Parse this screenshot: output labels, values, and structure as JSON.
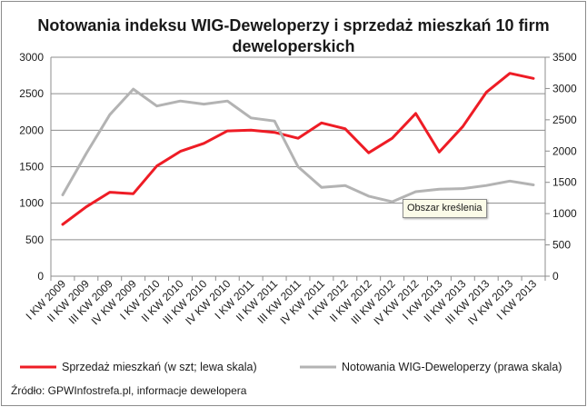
{
  "chart_data": {
    "type": "line",
    "title_line1": "Notowania indeksu WIG-Deweloperzy i sprzedaż mieszkań 10 firm",
    "title_line2": "deweloperskich",
    "categories": [
      "I KW 2009",
      "II KW 2009",
      "III KW 2009",
      "IV KW 2009",
      "I KW 2010",
      "II KW 2010",
      "III KW 2010",
      "IV KW 2010",
      "I KW 2011",
      "II KW 2011",
      "III KW 2011",
      "IV KW 2011",
      "I KW 2012",
      "II KW 2012",
      "III KW 2012",
      "IV KW 2012",
      "I KW 2013",
      "II KW 2013",
      "III KW 2013",
      "IV KW 2013",
      "I KW 2013"
    ],
    "y_left": {
      "min": 0,
      "max": 3000,
      "step": 500,
      "ticks": [
        "0",
        "500",
        "1000",
        "1500",
        "2000",
        "2500",
        "3000"
      ]
    },
    "y_right": {
      "min": 0,
      "max": 3500,
      "step": 500,
      "ticks": [
        "0",
        "500",
        "1000",
        "1500",
        "2000",
        "2500",
        "3000",
        "3500"
      ]
    },
    "grid": true,
    "legend_position": "bottom",
    "series": [
      {
        "name": "Sprzedaż mieszkań (w szt; lewa skala)",
        "axis": "left",
        "color": "#ee1c25",
        "values": [
          710,
          950,
          1150,
          1130,
          1510,
          1710,
          1820,
          1990,
          2000,
          1970,
          1890,
          2100,
          2020,
          1690,
          1890,
          2230,
          1700,
          2050,
          2520,
          2780,
          2710
        ]
      },
      {
        "name": "Notowania WIG-Deweloperzy (prawa skala)",
        "axis": "right",
        "color": "#b3b3b3",
        "values": [
          1300,
          1960,
          2580,
          2990,
          2720,
          2800,
          2750,
          2800,
          2530,
          2480,
          1750,
          1420,
          1450,
          1280,
          1190,
          1350,
          1390,
          1400,
          1450,
          1520,
          1460
        ]
      }
    ]
  },
  "tooltip": "Obszar kreślenia",
  "source": "Źródło: GPWInfostrefa.pl, informacje dewelopera"
}
